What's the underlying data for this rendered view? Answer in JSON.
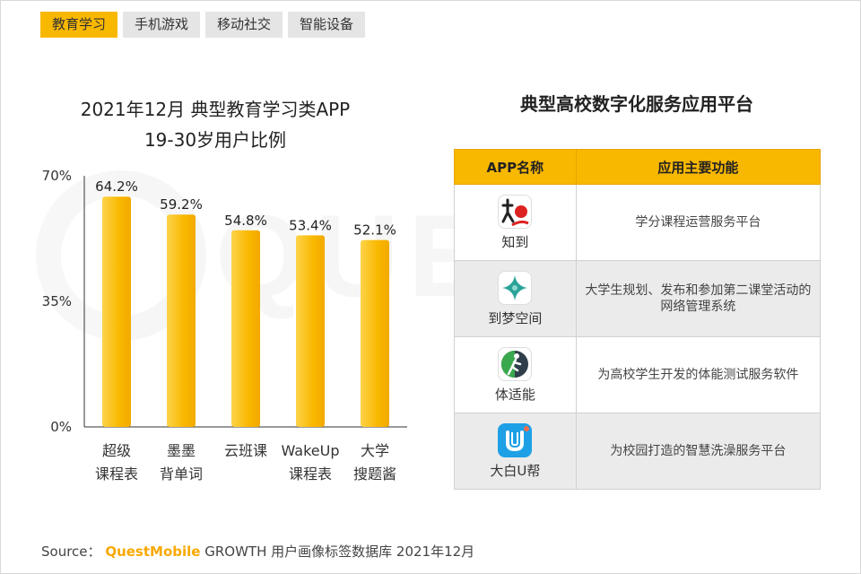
{
  "tabs": [
    {
      "label": "教育学习",
      "active": true
    },
    {
      "label": "手机游戏",
      "active": false
    },
    {
      "label": "移动社交",
      "active": false
    },
    {
      "label": "智能设备",
      "active": false
    }
  ],
  "watermark_text": "QUEST",
  "chart": {
    "title_line1": "2021年12月 典型教育学习类APP",
    "title_line2": "19-30岁用户比例"
  },
  "chart_data": {
    "type": "bar",
    "title": "2021年12月 典型教育学习类APP 19-30岁用户比例",
    "categories": [
      [
        "超级",
        "课程表"
      ],
      [
        "墨墨",
        "背单词"
      ],
      [
        "云班课"
      ],
      [
        "WakeUp",
        "课程表"
      ],
      [
        "大学",
        "搜题酱"
      ]
    ],
    "values": [
      64.2,
      59.2,
      54.8,
      53.4,
      52.1
    ],
    "value_labels": [
      "64.2%",
      "59.2%",
      "54.8%",
      "53.4%",
      "52.1%"
    ],
    "ylim": [
      0,
      70
    ],
    "yticks": [
      "0%",
      "35%",
      "70%"
    ],
    "ytick_values": [
      0,
      35,
      70
    ],
    "grid": false,
    "bar_color": "#f9b800",
    "bar_color_light": "#fcd34a"
  },
  "table": {
    "title": "典型高校数字化服务应用平台",
    "headers": [
      "APP名称",
      "应用主要功能"
    ],
    "rows": [
      {
        "name": "知到",
        "icon": "zhidao-icon",
        "func_line1": "学分课程运营服务平台",
        "func_line2": ""
      },
      {
        "name": "到梦空间",
        "icon": "daomeng-icon",
        "func_line1": "大学生规划、发布和参加第二课堂活动的",
        "func_line2": "网络管理系统"
      },
      {
        "name": "体适能",
        "icon": "tishineng-icon",
        "func_line1": "为高校学生开发的体能测试服务软件",
        "func_line2": ""
      },
      {
        "name": "大白U帮",
        "icon": "dabaiubang-icon",
        "func_line1": "为校园打造的智慧洗澡服务平台",
        "func_line2": ""
      }
    ]
  },
  "source": {
    "prefix": "Source：",
    "brand": "QuestMobile",
    "rest": "GROWTH 用户画像标签数据库 2021年12月"
  }
}
